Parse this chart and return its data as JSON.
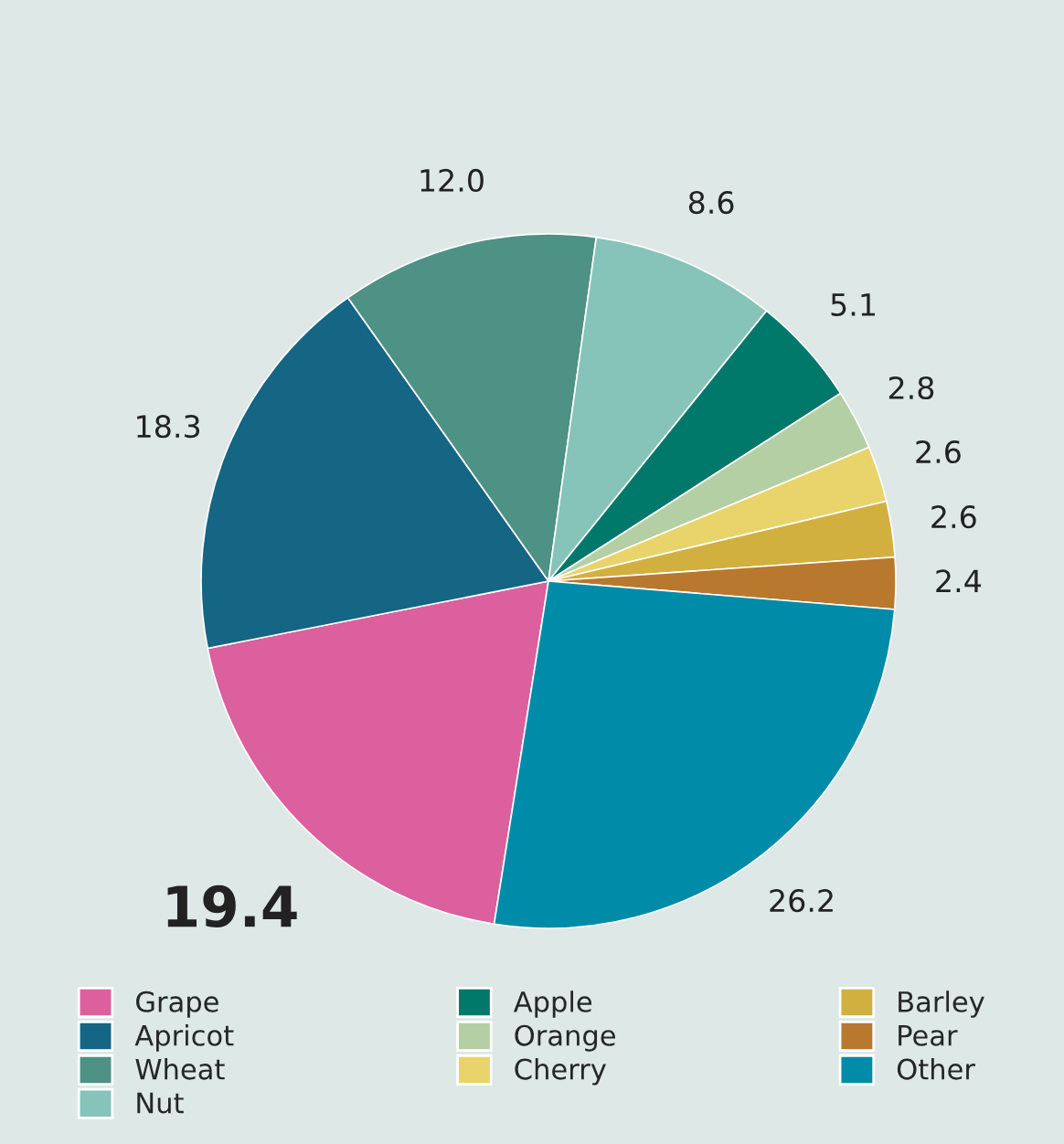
{
  "chart_data": {
    "type": "pie",
    "categories": [
      "Grape",
      "Apricot",
      "Wheat",
      "Nut",
      "Apple",
      "Orange",
      "Cherry",
      "Barley",
      "Pear",
      "Other"
    ],
    "values": [
      19.4,
      18.3,
      12.0,
      8.6,
      5.1,
      2.8,
      2.6,
      2.6,
      2.4,
      26.2
    ],
    "colors": [
      "#dc5f9e",
      "#156585",
      "#4e9185",
      "#86c3b8",
      "#00786a",
      "#b5cfa5",
      "#e8d46a",
      "#d2b040",
      "#b8782e",
      "#008ca8"
    ],
    "value_labels": [
      "19.4",
      "18.3",
      "12.0",
      "8.6",
      "5.1",
      "2.8",
      "2.6",
      "2.6",
      "2.4",
      "26.2"
    ],
    "legend": "bottom"
  }
}
